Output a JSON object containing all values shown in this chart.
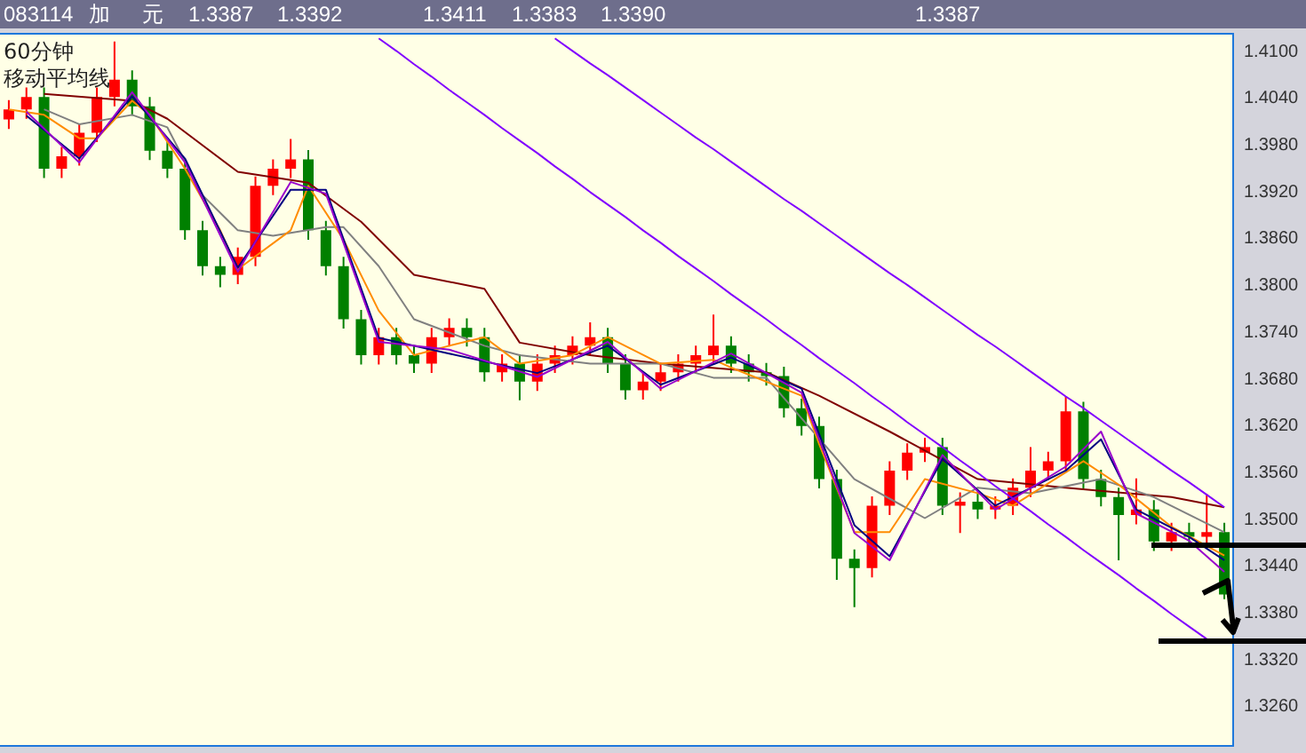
{
  "chart_data": {
    "type": "candlestick",
    "title": "60分钟",
    "subtitle": "移动平均线",
    "annotations": [
      "083114",
      "加",
      "元",
      "1.3387",
      "1.3392",
      "1.3411",
      "1.3383",
      "1.3390",
      "1.3387"
    ],
    "categories": [
      null,
      null,
      null,
      null,
      null,
      null,
      null,
      null,
      null,
      null,
      null,
      null,
      null,
      null,
      null,
      null,
      null,
      null,
      null,
      null,
      null,
      null,
      null,
      null,
      null,
      null,
      null,
      null,
      null,
      null,
      null,
      null,
      null,
      null,
      null,
      null,
      null,
      null,
      null,
      null,
      null,
      null,
      null,
      null,
      null,
      null,
      null,
      null,
      null,
      null,
      null,
      null,
      null,
      null,
      null,
      null,
      null,
      null,
      null,
      null,
      null,
      null,
      null,
      null,
      null,
      null,
      null,
      null,
      null,
      null
    ],
    "ohlc": [
      [
        1.401,
        1.4035,
        1.3998,
        1.4023
      ],
      [
        1.4023,
        1.4051,
        1.4011,
        1.4039
      ],
      [
        1.4039,
        1.4051,
        1.3935,
        1.3947
      ],
      [
        1.3947,
        1.3975,
        1.3935,
        1.3963
      ],
      [
        1.3963,
        1.4005,
        1.3951,
        1.3993
      ],
      [
        1.3993,
        1.4051,
        1.3981,
        1.4039
      ],
      [
        1.4039,
        1.411,
        1.4027,
        1.4061
      ],
      [
        1.4061,
        1.4073,
        1.4015,
        1.4027
      ],
      [
        1.4027,
        1.4039,
        1.3958,
        1.397
      ],
      [
        1.397,
        1.3982,
        1.3935,
        1.3947
      ],
      [
        1.3947,
        1.3959,
        1.3856,
        1.3868
      ],
      [
        1.3868,
        1.388,
        1.381,
        1.3822
      ],
      [
        1.3822,
        1.3834,
        1.3795,
        1.3811
      ],
      [
        1.3811,
        1.3846,
        1.3799,
        1.3834
      ],
      [
        1.3834,
        1.3937,
        1.3822,
        1.3925
      ],
      [
        1.3925,
        1.3959,
        1.3913,
        1.3947
      ],
      [
        1.3947,
        1.3985,
        1.3935,
        1.3959
      ],
      [
        1.3959,
        1.3971,
        1.3856,
        1.3868
      ],
      [
        1.3868,
        1.388,
        1.381,
        1.3822
      ],
      [
        1.3822,
        1.3834,
        1.3742,
        1.3754
      ],
      [
        1.3754,
        1.3766,
        1.3696,
        1.3708
      ],
      [
        1.3708,
        1.3743,
        1.3696,
        1.3731
      ],
      [
        1.3731,
        1.3743,
        1.3696,
        1.3708
      ],
      [
        1.3708,
        1.372,
        1.3685,
        1.3697
      ],
      [
        1.3697,
        1.3743,
        1.3685,
        1.3731
      ],
      [
        1.3731,
        1.3755,
        1.3719,
        1.3743
      ],
      [
        1.3743,
        1.3755,
        1.3719,
        1.3731
      ],
      [
        1.3731,
        1.3743,
        1.3674,
        1.3686
      ],
      [
        1.3686,
        1.3709,
        1.3674,
        1.3697
      ],
      [
        1.3697,
        1.3709,
        1.365,
        1.3674
      ],
      [
        1.3674,
        1.3709,
        1.3662,
        1.3697
      ],
      [
        1.3697,
        1.372,
        1.3685,
        1.3708
      ],
      [
        1.3708,
        1.3732,
        1.3696,
        1.372
      ],
      [
        1.372,
        1.375,
        1.3708,
        1.3731
      ],
      [
        1.3731,
        1.3743,
        1.3685,
        1.3697
      ],
      [
        1.3697,
        1.3709,
        1.3651,
        1.3663
      ],
      [
        1.3663,
        1.3686,
        1.3651,
        1.3674
      ],
      [
        1.3674,
        1.3698,
        1.3662,
        1.3686
      ],
      [
        1.3686,
        1.3709,
        1.3674,
        1.3697
      ],
      [
        1.3697,
        1.372,
        1.3685,
        1.3708
      ],
      [
        1.3708,
        1.376,
        1.3696,
        1.372
      ],
      [
        1.372,
        1.3732,
        1.3685,
        1.3697
      ],
      [
        1.3697,
        1.3709,
        1.3674,
        1.3686
      ],
      [
        1.3686,
        1.3698,
        1.3669,
        1.3681
      ],
      [
        1.3681,
        1.3693,
        1.3628,
        1.364
      ],
      [
        1.364,
        1.3652,
        1.3605,
        1.3617
      ],
      [
        1.3617,
        1.3629,
        1.3537,
        1.3549
      ],
      [
        1.3549,
        1.3561,
        1.342,
        1.3447
      ],
      [
        1.3447,
        1.3459,
        1.3385,
        1.3435
      ],
      [
        1.3435,
        1.3527,
        1.3423,
        1.3515
      ],
      [
        1.3515,
        1.3572,
        1.3503,
        1.356
      ],
      [
        1.356,
        1.3595,
        1.3548,
        1.3583
      ],
      [
        1.3583,
        1.3602,
        1.3571,
        1.359
      ],
      [
        1.359,
        1.3602,
        1.3503,
        1.3515
      ],
      [
        1.3515,
        1.3532,
        1.348,
        1.352
      ],
      [
        1.352,
        1.3532,
        1.3498,
        1.351
      ],
      [
        1.351,
        1.3527,
        1.3498,
        1.3515
      ],
      [
        1.3515,
        1.355,
        1.3503,
        1.3538
      ],
      [
        1.3538,
        1.359,
        1.3526,
        1.356
      ],
      [
        1.356,
        1.3584,
        1.3548,
        1.3572
      ],
      [
        1.3572,
        1.3655,
        1.356,
        1.3636
      ],
      [
        1.3636,
        1.3648,
        1.3537,
        1.3549
      ],
      [
        1.3549,
        1.3561,
        1.3514,
        1.3526
      ],
      [
        1.3526,
        1.3538,
        1.3445,
        1.3503
      ],
      [
        1.3503,
        1.355,
        1.3491,
        1.351
      ],
      [
        1.351,
        1.3522,
        1.3457,
        1.3469
      ],
      [
        1.3469,
        1.3493,
        1.3457,
        1.3481
      ],
      [
        1.3481,
        1.3493,
        1.3463,
        1.3475
      ],
      [
        1.3475,
        1.353,
        1.3463,
        1.3481
      ],
      [
        1.3481,
        1.3493,
        1.3395,
        1.3401
      ]
    ],
    "colors": [
      "#ff0000",
      "#ff0000",
      "#008000",
      "#ff0000",
      "#ff0000",
      "#ff0000",
      "#ff0000",
      "#008000",
      "#008000",
      "#008000",
      "#008000",
      "#008000",
      "#008000",
      "#ff0000",
      "#ff0000",
      "#ff0000",
      "#ff0000",
      "#008000",
      "#008000",
      "#008000",
      "#008000",
      "#ff0000",
      "#008000",
      "#008000",
      "#ff0000",
      "#ff0000",
      "#008000",
      "#008000",
      "#ff0000",
      "#008000",
      "#ff0000",
      "#ff0000",
      "#ff0000",
      "#ff0000",
      "#008000",
      "#008000",
      "#ff0000",
      "#ff0000",
      "#ff0000",
      "#ff0000",
      "#ff0000",
      "#008000",
      "#008000",
      "#008000",
      "#008000",
      "#008000",
      "#008000",
      "#008000",
      "#008000",
      "#ff0000",
      "#ff0000",
      "#ff0000",
      "#ff0000",
      "#008000",
      "#ff0000",
      "#008000",
      "#ff0000",
      "#ff0000",
      "#ff0000",
      "#ff0000",
      "#ff0000",
      "#008000",
      "#008000",
      "#008000",
      "#ff0000",
      "#008000",
      "#ff0000",
      "#008000",
      "#ff0000",
      "#008000"
    ],
    "series": [
      {
        "type": "line",
        "color": "#800000",
        "values": [
          null,
          null,
          1.4043,
          null,
          null,
          null,
          null,
          1.4034,
          null,
          1.4011,
          null,
          null,
          null,
          1.3943,
          null,
          null,
          null,
          1.3929,
          null,
          null,
          1.3879,
          null,
          null,
          1.3811,
          null,
          null,
          null,
          1.3793,
          null,
          1.3724,
          null,
          null,
          null,
          1.3708,
          null,
          null,
          null,
          1.3697,
          null,
          null,
          null,
          null,
          null,
          1.3686,
          null,
          null,
          1.3656,
          null,
          null,
          null,
          1.361,
          null,
          null,
          null,
          null,
          1.3549,
          null,
          null,
          null,
          null,
          1.3538,
          null,
          null,
          null,
          null,
          null,
          1.3526,
          null,
          null,
          1.3513
        ]
      },
      {
        "type": "line",
        "color": "#808080",
        "values": [
          null,
          null,
          1.4023,
          null,
          1.4004,
          null,
          null,
          1.4016,
          null,
          1.4,
          null,
          1.3913,
          null,
          1.3868,
          null,
          1.3861,
          null,
          null,
          1.3872,
          1.3872,
          null,
          1.3822,
          null,
          1.3754,
          null,
          null,
          null,
          1.372,
          null,
          1.3708,
          null,
          null,
          null,
          1.3697,
          null,
          null,
          null,
          1.3697,
          null,
          null,
          1.3679,
          null,
          null,
          1.3679,
          null,
          null,
          1.3601,
          null,
          1.3549,
          null,
          null,
          null,
          1.3499,
          null,
          null,
          1.3538,
          null,
          null,
          1.3531,
          null,
          null,
          null,
          1.3549,
          null,
          null,
          1.3526,
          null,
          null,
          null,
          1.3481
        ]
      },
      {
        "type": "line",
        "color": "#ff8c00",
        "values": [
          1.4023,
          null,
          1.4016,
          null,
          1.3986,
          1.3986,
          null,
          1.4034,
          1.4016,
          null,
          1.3947,
          null,
          1.3868,
          1.3818,
          null,
          null,
          1.3868,
          1.3925,
          null,
          1.3856,
          null,
          1.3765,
          null,
          1.3708,
          null,
          1.372,
          null,
          1.3731,
          null,
          1.3697,
          null,
          null,
          1.3708,
          null,
          1.3731,
          null,
          null,
          1.3697,
          null,
          null,
          1.3702,
          1.3692,
          null,
          null,
          null,
          1.3656,
          1.3594,
          null,
          1.3481,
          null,
          1.3481,
          null,
          1.3549,
          null,
          null,
          1.3531,
          null,
          1.3515,
          null,
          null,
          null,
          1.3572,
          null,
          1.3542,
          null,
          null,
          1.3488,
          null,
          null,
          1.3451
        ]
      },
      {
        "type": "line",
        "color": "#000080",
        "values": [
          null,
          1.4015,
          null,
          null,
          1.396,
          null,
          null,
          1.404,
          null,
          null,
          1.396,
          null,
          null,
          1.382,
          null,
          null,
          1.392,
          null,
          1.392,
          null,
          null,
          1.373,
          null,
          null,
          null,
          1.371,
          null,
          null,
          null,
          null,
          1.3685,
          null,
          null,
          null,
          1.372,
          null,
          null,
          1.367,
          null,
          null,
          null,
          1.3705,
          null,
          null,
          null,
          1.3665,
          null,
          null,
          1.349,
          null,
          1.345,
          null,
          null,
          1.3575,
          null,
          null,
          1.3515,
          null,
          null,
          null,
          1.356,
          null,
          1.36,
          null,
          1.351,
          null,
          null,
          1.3475,
          null,
          1.3445
        ]
      },
      {
        "type": "line",
        "color": "#9900cc",
        "values": [
          null,
          1.402,
          null,
          null,
          1.3955,
          null,
          null,
          1.4045,
          null,
          null,
          1.3955,
          null,
          null,
          1.3815,
          null,
          null,
          1.393,
          null,
          1.3915,
          null,
          null,
          1.3725,
          null,
          null,
          null,
          1.3715,
          null,
          null,
          null,
          null,
          1.368,
          null,
          null,
          null,
          1.3725,
          null,
          null,
          1.3665,
          null,
          null,
          null,
          1.371,
          null,
          null,
          null,
          1.366,
          null,
          null,
          1.348,
          null,
          1.3445,
          null,
          null,
          1.358,
          null,
          null,
          1.351,
          null,
          null,
          null,
          1.3565,
          null,
          1.361,
          null,
          1.3505,
          null,
          null,
          1.347,
          null,
          1.343
        ]
      },
      {
        "type": "line",
        "color": "#8000ff",
        "values": [
          null,
          null,
          null,
          null,
          null,
          null,
          null,
          null,
          null,
          null,
          null,
          null,
          null,
          null,
          null,
          null,
          null,
          null,
          null,
          null,
          null,
          1.4114,
          1.4098,
          1.4081,
          1.4065,
          1.4048,
          1.4032,
          1.4016,
          1.3999,
          1.3983,
          1.3967,
          1.395,
          1.3934,
          1.3917,
          1.3901,
          1.3885,
          1.3868,
          1.3852,
          1.3835,
          1.3819,
          1.3803,
          1.3786,
          1.377,
          1.3754,
          1.3737,
          1.3721,
          1.3704,
          1.3688,
          1.3672,
          1.3655,
          1.3639,
          1.3622,
          1.3606,
          1.359,
          1.3573,
          1.3557,
          1.354,
          1.3524,
          1.3508,
          1.3491,
          1.3475,
          1.3458,
          1.3442,
          1.3426,
          1.3409,
          1.3393,
          1.3376,
          1.336,
          1.3344,
          null
        ]
      },
      {
        "type": "line",
        "color": "#8000ff",
        "values": [
          null,
          null,
          null,
          null,
          null,
          null,
          null,
          null,
          null,
          null,
          null,
          null,
          null,
          null,
          null,
          null,
          null,
          null,
          null,
          null,
          null,
          null,
          null,
          null,
          null,
          null,
          null,
          null,
          null,
          null,
          null,
          1.4114,
          1.4098,
          1.4082,
          1.4067,
          1.4051,
          1.4035,
          1.4019,
          1.4003,
          1.3987,
          1.3972,
          1.3956,
          1.394,
          1.3924,
          1.3908,
          1.3893,
          1.3877,
          1.3861,
          1.3845,
          1.3829,
          1.3813,
          1.3798,
          1.3782,
          1.3766,
          1.375,
          1.3734,
          1.3719,
          1.3703,
          1.3687,
          1.3671,
          1.3655,
          1.364,
          1.3624,
          1.3608,
          1.3592,
          1.3576,
          1.356,
          1.3545,
          1.3529,
          1.3513
        ]
      }
    ],
    "ylim": [
      1.3207,
      1.412
    ],
    "yticks": [
      {
        "value": 1.41,
        "label": "1.4100"
      },
      {
        "value": 1.404,
        "label": "1.4040"
      },
      {
        "value": 1.398,
        "label": "1.3980"
      },
      {
        "value": 1.392,
        "label": "1.3920"
      },
      {
        "value": 1.386,
        "label": "1.3860"
      },
      {
        "value": 1.38,
        "label": "1.3800"
      },
      {
        "value": 1.374,
        "label": "1.3740"
      },
      {
        "value": 1.368,
        "label": "1.3680"
      },
      {
        "value": 1.362,
        "label": "1.3620"
      },
      {
        "value": 1.356,
        "label": "1.3560"
      },
      {
        "value": 1.35,
        "label": "1.3500"
      },
      {
        "value": 1.344,
        "label": "1.3440"
      },
      {
        "value": 1.338,
        "label": "1.3380"
      },
      {
        "value": 1.332,
        "label": "1.3320"
      },
      {
        "value": 1.326,
        "label": "1.3260"
      }
    ],
    "tick_labels": "y"
  }
}
